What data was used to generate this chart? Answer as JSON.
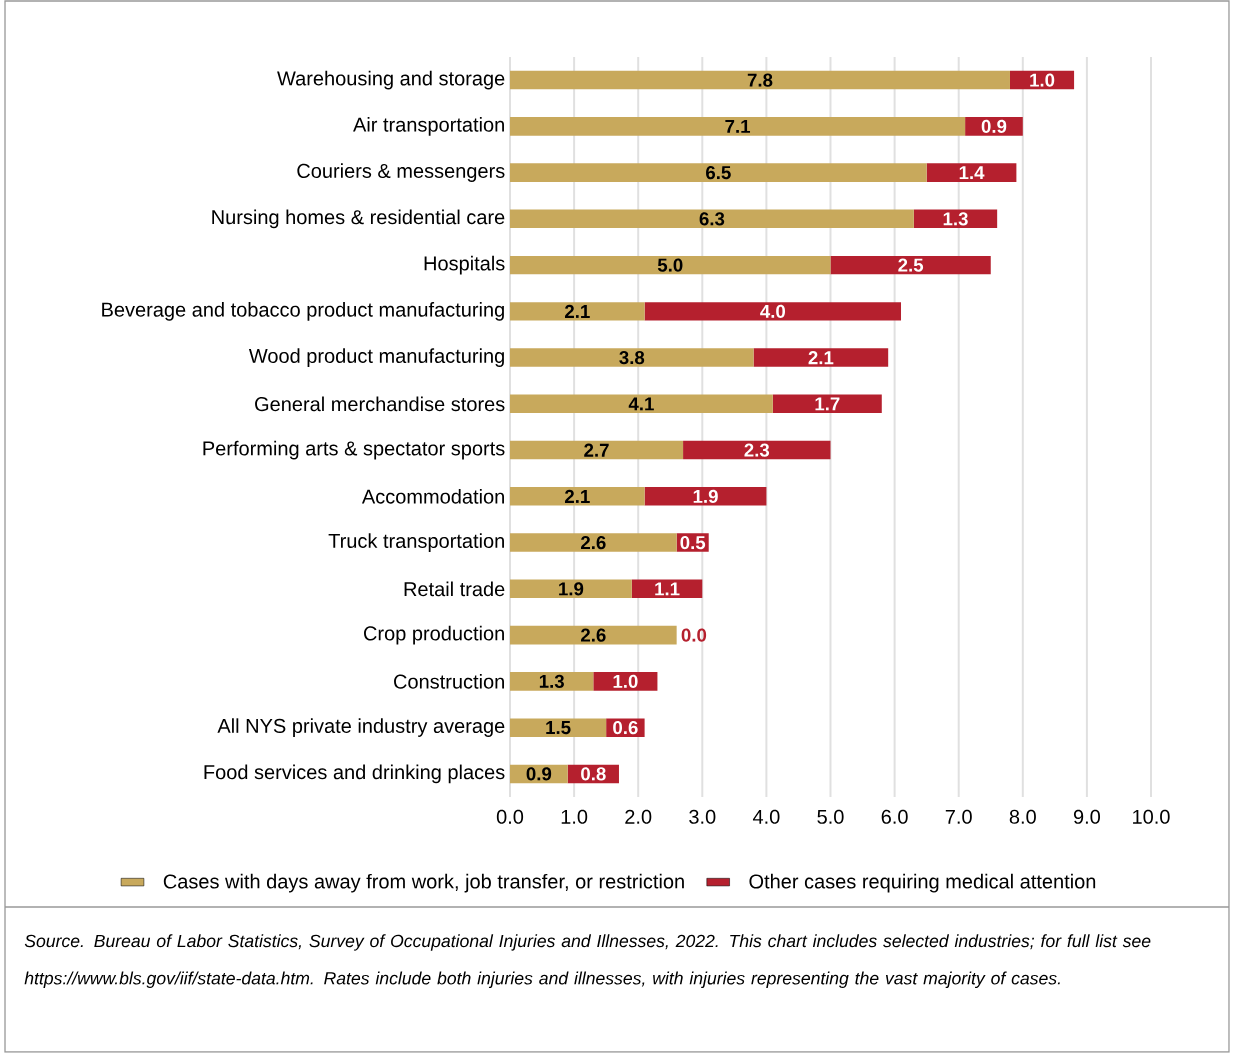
{
  "chart_data": {
    "type": "bar",
    "orientation": "horizontal",
    "stacked": true,
    "categories": [
      "Warehousing and storage",
      "Air transportation",
      "Couriers & messengers",
      "Nursing homes & residential care",
      "Hospitals",
      "Beverage and tobacco product manufacturing",
      "Wood product manufacturing",
      "General merchandise stores",
      "Performing arts & spectator sports",
      "Accommodation",
      "Truck transportation",
      "Retail trade",
      "Crop production",
      "Construction",
      "All NYS private industry average",
      "Food services and drinking places"
    ],
    "series": [
      {
        "name": "Cases with days away from work, job transfer, or restriction",
        "color": "#c8a95c",
        "values": [
          7.8,
          7.1,
          6.5,
          6.3,
          5.0,
          2.1,
          3.8,
          4.1,
          2.7,
          2.1,
          2.6,
          1.9,
          2.6,
          1.3,
          1.5,
          0.9
        ],
        "value_labels": [
          "7.8",
          "7.1",
          "6.5",
          "6.3",
          "5.0",
          "2.1",
          "3.8",
          "4.1",
          "2.7",
          "2.1",
          "2.6",
          "1.9",
          "2.6",
          "1.3",
          "1.5",
          "0.9"
        ]
      },
      {
        "name": "Other cases requiring medical attention",
        "color": "#b5202e",
        "values": [
          1.0,
          0.9,
          1.4,
          1.3,
          2.5,
          4.0,
          2.1,
          1.7,
          2.3,
          1.9,
          0.5,
          1.1,
          0.0,
          1.0,
          0.6,
          0.8
        ],
        "value_labels": [
          "1.0",
          "0.9",
          "1.4",
          "1.3",
          "2.5",
          "4.0",
          "2.1",
          "1.7",
          "2.3",
          "1.9",
          "0.5",
          "1.1",
          "0.0",
          "1.0",
          "0.6",
          "0.8"
        ]
      }
    ],
    "xlim": [
      0,
      10
    ],
    "xticks": [
      {
        "value": 0,
        "label": "0.0"
      },
      {
        "value": 1,
        "label": "1.0"
      },
      {
        "value": 2,
        "label": "2.0"
      },
      {
        "value": 3,
        "label": "3.0"
      },
      {
        "value": 4,
        "label": "4.0"
      },
      {
        "value": 5,
        "label": "5.0"
      },
      {
        "value": 6,
        "label": "6.0"
      },
      {
        "value": 7,
        "label": "7.0"
      },
      {
        "value": 8,
        "label": "8.0"
      },
      {
        "value": 9,
        "label": "9.0"
      },
      {
        "value": 10,
        "label": "10.0"
      }
    ],
    "grid": "x",
    "legend": "bottom",
    "annotations": [
      "Source.  Bureau of Labor Statistics, Survey of Occupational Injuries and Illnesses, 2022. This chart includes selected industries; for full list see https://www.bls.gov/iif/state-data.htm. Rates include both injuries and illnesses, with injuries representing the vast majority of cases."
    ]
  }
}
